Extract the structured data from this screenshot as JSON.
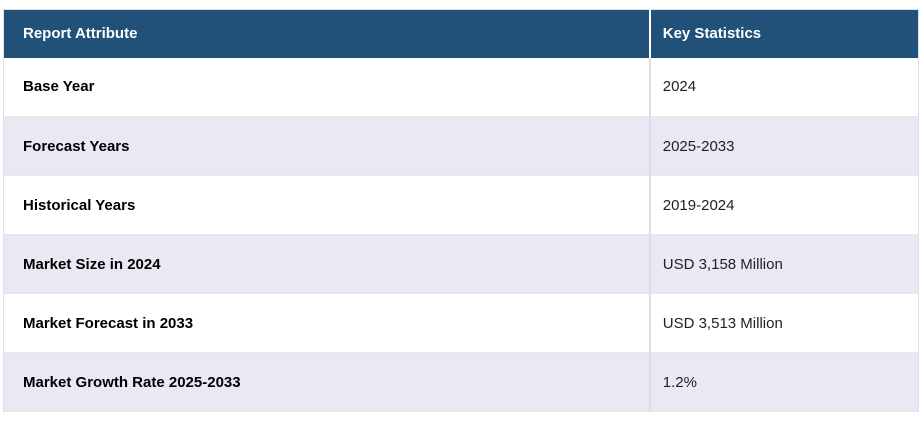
{
  "table": {
    "columns": [
      {
        "label": "Report Attribute"
      },
      {
        "label": "Key Statistics"
      }
    ],
    "rows": [
      {
        "attribute": "Base Year",
        "value": "2024"
      },
      {
        "attribute": "Forecast Years",
        "value": "2025-2033"
      },
      {
        "attribute": "Historical Years",
        "value": "2019-2024"
      },
      {
        "attribute": "Market Size in 2024",
        "value": "USD 3,158 Million"
      },
      {
        "attribute": "Market Forecast in 2033",
        "value": "USD 3,513 Million"
      },
      {
        "attribute": "Market Growth Rate 2025-2033",
        "value": "1.2%"
      }
    ],
    "colors": {
      "header_bg": "#215179",
      "header_text": "#ffffff",
      "row_bg": "#ffffff",
      "row_alt_bg": "#e8e9f3",
      "border": "#dddee8",
      "attr_text": "#000000",
      "value_text": "#222222",
      "page_bg": "#ffffff"
    }
  }
}
